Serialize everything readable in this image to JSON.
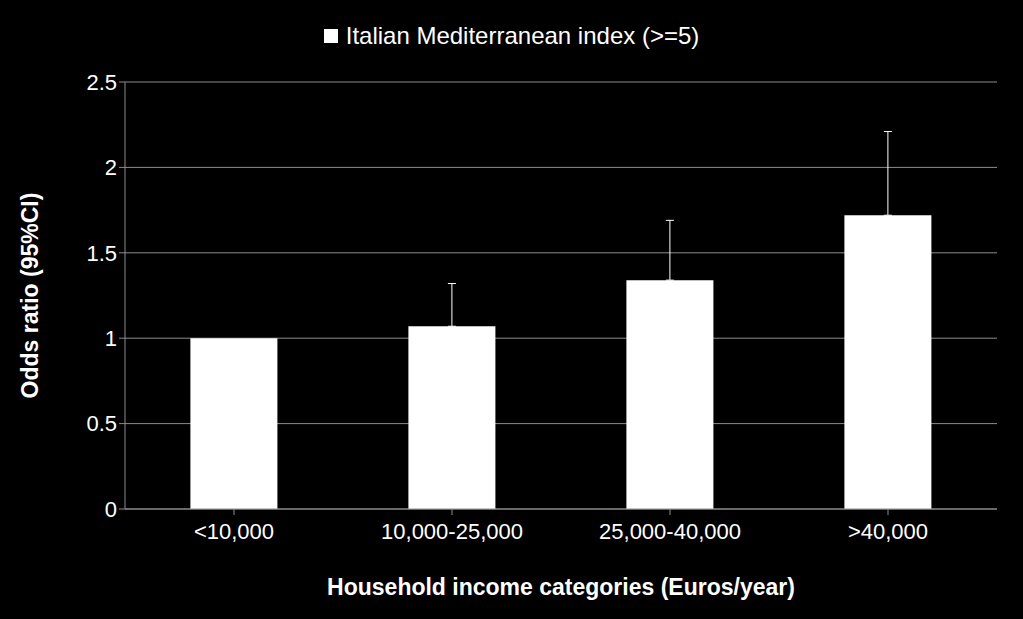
{
  "chart_data": {
    "type": "bar",
    "categories": [
      "<10,000",
      "10,000-25,000",
      "25,000-40,000",
      ">40,000"
    ],
    "series": [
      {
        "name": "Italian Mediterranean index (>=5)",
        "color": "#ffffff",
        "values": [
          1,
          1.07,
          1.34,
          1.72
        ],
        "ci_upper": [
          null,
          1.32,
          1.69,
          2.21
        ]
      }
    ],
    "x_label": "Household income categories (Euros/year)",
    "y_label": "Odds ratio (95%CI)",
    "ylim": [
      0,
      2.5
    ],
    "yticks": [
      0,
      0.5,
      1,
      1.5,
      2,
      2.5
    ],
    "grid": true,
    "legend": "top"
  }
}
